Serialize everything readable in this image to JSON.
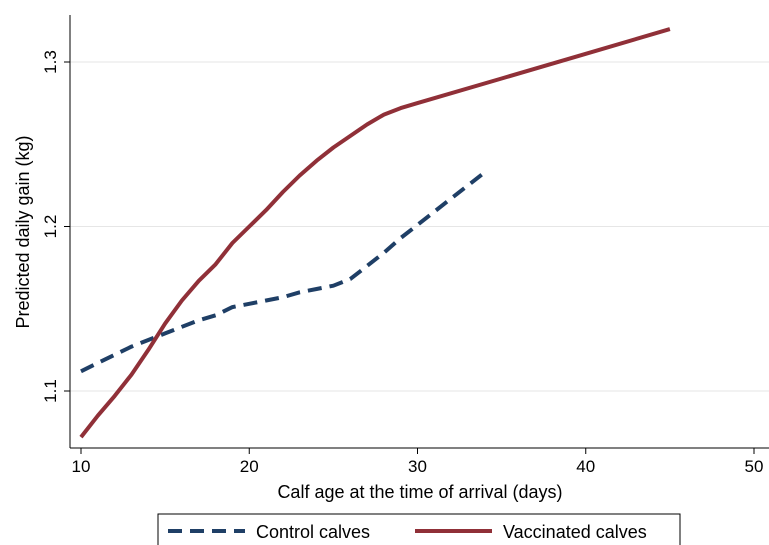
{
  "chart_data": {
    "type": "line",
    "xlabel": "Calf age at the time of arrival (days)",
    "ylabel": "Predicted daily gain (kg)",
    "xlim": [
      10,
      50
    ],
    "ylim": [
      1.065,
      1.33
    ],
    "xticks": [
      10,
      20,
      30,
      40,
      50
    ],
    "xtick_labels": [
      "10",
      "20",
      "30",
      "40",
      "50"
    ],
    "yticks": [
      1.1,
      1.2,
      1.3
    ],
    "ytick_labels": [
      "1.1",
      "1.2",
      "1.3"
    ],
    "grid": "horizontal",
    "legend_position": "bottom",
    "series": [
      {
        "name": "Control calves",
        "color": "#1f3f66",
        "style": "dashed",
        "x": [
          10,
          11,
          12,
          13,
          14,
          15,
          16,
          17,
          18,
          19,
          20,
          21,
          22,
          23,
          24,
          25,
          26,
          27,
          28,
          29,
          30,
          31,
          32,
          33,
          34
        ],
        "y": [
          1.112,
          1.117,
          1.122,
          1.127,
          1.131,
          1.135,
          1.139,
          1.143,
          1.146,
          1.151,
          1.153,
          1.155,
          1.157,
          1.16,
          1.162,
          1.164,
          1.168,
          1.176,
          1.184,
          1.193,
          1.201,
          1.209,
          1.217,
          1.225,
          1.233
        ]
      },
      {
        "name": "Vaccinated calves",
        "color": "#903038",
        "style": "solid",
        "x": [
          10,
          11,
          12,
          13,
          14,
          15,
          16,
          17,
          18,
          19,
          20,
          21,
          22,
          23,
          24,
          25,
          26,
          27,
          28,
          29,
          30,
          35,
          40,
          45
        ],
        "y": [
          1.072,
          1.085,
          1.097,
          1.11,
          1.125,
          1.141,
          1.155,
          1.167,
          1.177,
          1.19,
          1.2,
          1.21,
          1.221,
          1.231,
          1.24,
          1.248,
          1.255,
          1.262,
          1.268,
          1.272,
          1.275,
          1.29,
          1.305,
          1.32
        ]
      }
    ]
  }
}
